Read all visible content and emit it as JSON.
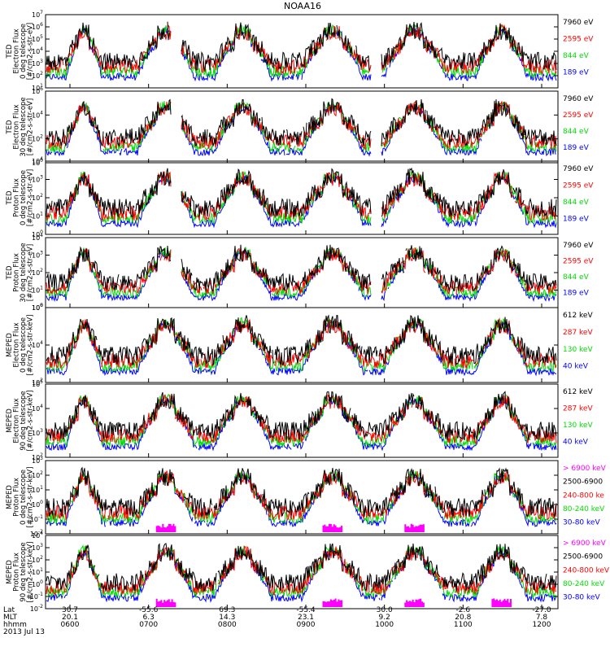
{
  "title": "NOAA16",
  "colors": {
    "black": "#000000",
    "red": "#ff0000",
    "green": "#00dd00",
    "blue": "#0000ff",
    "magenta": "#ff00ff"
  },
  "chart_data": {
    "type": "line",
    "title": "NOAA16",
    "x_time_ticks": [
      "0600",
      "0700",
      "0800",
      "0900",
      "1000",
      "1100",
      "1200"
    ],
    "x_axis_rows": [
      {
        "label": "Lat",
        "values": [
          "30.7",
          "-55.6",
          "69.3",
          "-55.4",
          "30.0",
          "-2.6",
          "-27.0"
        ]
      },
      {
        "label": "MLT",
        "values": [
          "20.1",
          "6.3",
          "14.3",
          "23.1",
          "9.2",
          "20.8",
          "7.8"
        ]
      },
      {
        "label": "hhmm",
        "values": [
          "0600",
          "0700",
          "0800",
          "0900",
          "1000",
          "1100",
          "1200"
        ]
      }
    ],
    "date_label": "2013 Jul 13",
    "panels": [
      {
        "ylabel_lines": [
          "TED",
          "Electron Flux",
          "0 deg telescope",
          "[#/cm2-s-str-eV]"
        ],
        "yexp": [
          1,
          2,
          3,
          4,
          5,
          6,
          7
        ],
        "legend": [
          {
            "text": "7960 eV",
            "color": "#000000"
          },
          {
            "text": "2595 eV",
            "color": "#ff0000"
          },
          {
            "text": "844 eV",
            "color": "#00dd00"
          },
          {
            "text": "189 eV",
            "color": "#0000ff"
          }
        ]
      },
      {
        "ylabel_lines": [
          "TED",
          "Electron Flux",
          "30 deg telescope",
          "[#/cm2-s-str-eV]"
        ],
        "yexp": [
          0,
          2,
          4,
          6
        ],
        "legend": [
          {
            "text": "7960 eV",
            "color": "#000000"
          },
          {
            "text": "2595 eV",
            "color": "#ff0000"
          },
          {
            "text": "844 eV",
            "color": "#00dd00"
          },
          {
            "text": "189 eV",
            "color": "#0000ff"
          }
        ]
      },
      {
        "ylabel_lines": [
          "TED",
          "Proton Flux",
          "0 deg telescope",
          "[#/cm2-s-str-eV]"
        ],
        "yexp": [
          0,
          1,
          2,
          3,
          4
        ],
        "legend": [
          {
            "text": "7960 eV",
            "color": "#000000"
          },
          {
            "text": "2595 eV",
            "color": "#ff0000"
          },
          {
            "text": "844 eV",
            "color": "#00dd00"
          },
          {
            "text": "189 eV",
            "color": "#0000ff"
          }
        ]
      },
      {
        "ylabel_lines": [
          "TED",
          "Proton Flux",
          "30 deg telescope",
          "[#/cm2-s-str-eV]"
        ],
        "yexp": [
          0,
          1,
          2,
          3,
          4
        ],
        "legend": [
          {
            "text": "7960 eV",
            "color": "#000000"
          },
          {
            "text": "2595 eV",
            "color": "#ff0000"
          },
          {
            "text": "844 eV",
            "color": "#00dd00"
          },
          {
            "text": "189 eV",
            "color": "#0000ff"
          }
        ]
      },
      {
        "ylabel_lines": [
          "MEPED",
          "Electron Flux",
          "0 deg telescope",
          "[#/cm2-s-str-keV]"
        ],
        "yexp": [
          2,
          4,
          6
        ],
        "legend": [
          {
            "text": "612 keV",
            "color": "#000000"
          },
          {
            "text": "287 keV",
            "color": "#ff0000"
          },
          {
            "text": "130 keV",
            "color": "#00dd00"
          },
          {
            "text": "40 keV",
            "color": "#0000ff"
          }
        ]
      },
      {
        "ylabel_lines": [
          "MEPED",
          "Electron Flux",
          "90 deg telescope",
          "[#/cm2-s-str-keV]"
        ],
        "yexp": [
          2,
          3,
          4,
          5
        ],
        "legend": [
          {
            "text": "612 keV",
            "color": "#000000"
          },
          {
            "text": "287 keV",
            "color": "#ff0000"
          },
          {
            "text": "130 keV",
            "color": "#00dd00"
          },
          {
            "text": "40 keV",
            "color": "#0000ff"
          }
        ]
      },
      {
        "ylabel_lines": [
          "MEPED",
          "Proton Flux",
          "0 deg telescope",
          "[#/cm2-s-str-keV]"
        ],
        "yexp": [
          -2,
          -1,
          0,
          1,
          2,
          3
        ],
        "legend": [
          {
            "text": "> 6900 keV",
            "color": "#ff00ff"
          },
          {
            "text": "2500-6900",
            "color": "#000000"
          },
          {
            "text": "240-800 ke",
            "color": "#ff0000"
          },
          {
            "text": "80-240 keV",
            "color": "#00dd00"
          },
          {
            "text": "30-80 keV",
            "color": "#0000ff"
          }
        ]
      },
      {
        "ylabel_lines": [
          "MEPED",
          "Proton Flux",
          "90 deg telescope",
          "[#/cm2-s-str-keV]"
        ],
        "yexp": [
          -2,
          -1,
          0,
          1,
          2,
          3,
          4
        ],
        "legend": [
          {
            "text": "> 6900 keV",
            "color": "#ff00ff"
          },
          {
            "text": "2500-6900",
            "color": "#000000"
          },
          {
            "text": "240-800 keV",
            "color": "#ff0000"
          },
          {
            "text": "80-240 keV",
            "color": "#00dd00"
          },
          {
            "text": "30-80 keV",
            "color": "#0000ff"
          }
        ]
      }
    ]
  }
}
